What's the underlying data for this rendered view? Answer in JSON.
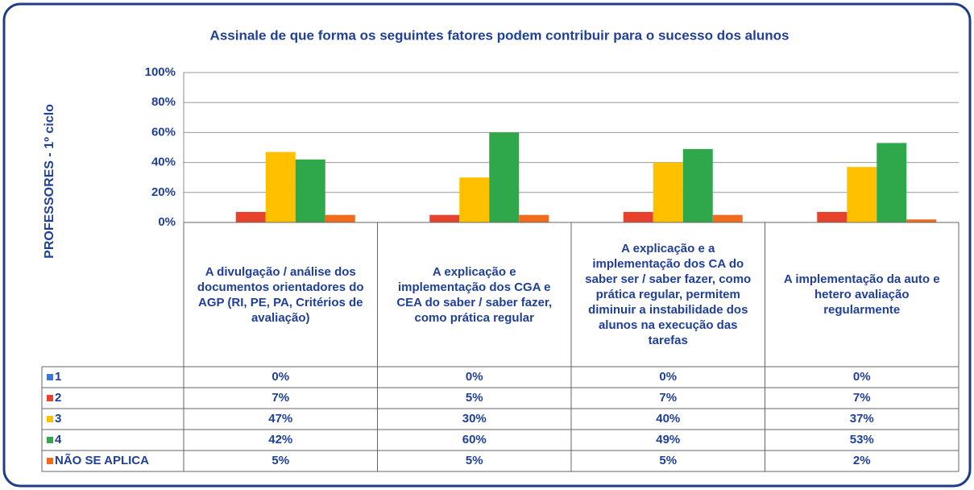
{
  "chart_data": {
    "type": "bar",
    "title": "Assinale de que forma os seguintes fatores podem contribuir para o sucesso dos alunos",
    "ylabel": "PROFESSORES - 1º ciclo",
    "categories": [
      "A divulgação / análise dos documentos orientadores do AGP (RI, PE, PA, Critérios de avaliação)",
      "A explicação e implementação dos CGA e CEA do saber / saber fazer, como prática regular",
      "A explicação e a implementação dos CA do saber ser / saber fazer, como prática regular, permitem diminuir a instabilidade dos alunos na execução das tarefas",
      "A implementação da auto e hetero avaliação regularmente"
    ],
    "series": [
      {
        "name": "1",
        "color": "#3a78d6",
        "values": [
          0,
          0,
          0,
          0
        ],
        "value_labels": [
          "0%",
          "0%",
          "0%",
          "0%"
        ]
      },
      {
        "name": "2",
        "color": "#e8412c",
        "values": [
          7,
          5,
          7,
          7
        ],
        "value_labels": [
          "7%",
          "5%",
          "7%",
          "7%"
        ]
      },
      {
        "name": "3",
        "color": "#ffc000",
        "values": [
          47,
          30,
          40,
          37
        ],
        "value_labels": [
          "47%",
          "30%",
          "40%",
          "37%"
        ]
      },
      {
        "name": "4",
        "color": "#2ea84a",
        "values": [
          42,
          60,
          49,
          53
        ],
        "value_labels": [
          "42%",
          "60%",
          "49%",
          "53%"
        ]
      },
      {
        "name": "NÃO SE APLICA",
        "color": "#f26b1d",
        "values": [
          5,
          5,
          5,
          2
        ],
        "value_labels": [
          "5%",
          "5%",
          "5%",
          "2%"
        ]
      }
    ],
    "ylim": [
      0,
      100
    ],
    "yticks": [
      {
        "value": 0,
        "label": "0%"
      },
      {
        "value": 20,
        "label": "20%"
      },
      {
        "value": 40,
        "label": "40%"
      },
      {
        "value": 60,
        "label": "60%"
      },
      {
        "value": 80,
        "label": "80%"
      },
      {
        "value": 100,
        "label": "100%"
      }
    ],
    "grid": true
  }
}
